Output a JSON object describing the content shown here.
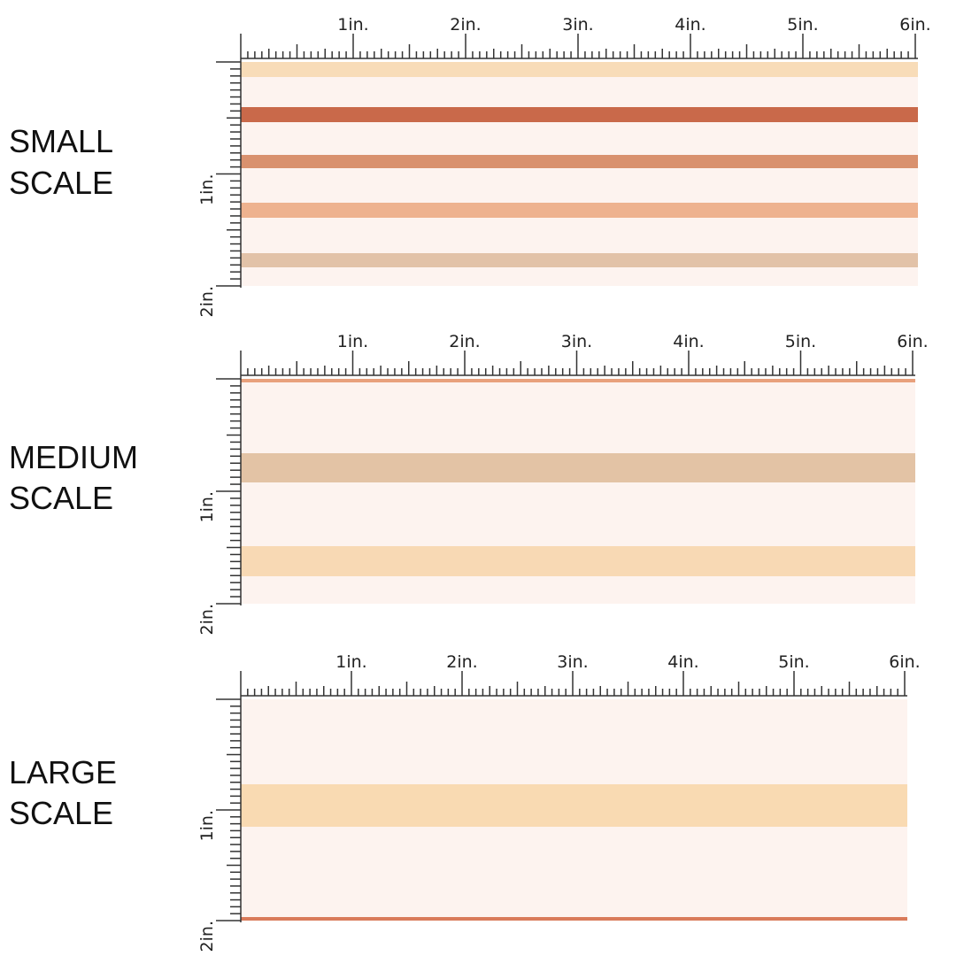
{
  "panels": [
    {
      "label": [
        "SMALL",
        "SCALE"
      ],
      "x_ruler": [
        "1in.",
        "2in.",
        "3in.",
        "4in.",
        "5in.",
        "6in."
      ],
      "y_ruler": [
        "1in.",
        "2in."
      ]
    },
    {
      "label": [
        "MEDIUM",
        "SCALE"
      ],
      "x_ruler": [
        "1in.",
        "2in.",
        "3in.",
        "4in.",
        "5in.",
        "6in."
      ],
      "y_ruler": [
        "1in.",
        "2in."
      ]
    },
    {
      "label": [
        "LARGE",
        "SCALE"
      ],
      "x_ruler": [
        "1in.",
        "2in.",
        "3in.",
        "4in.",
        "5in.",
        "6in."
      ],
      "y_ruler": [
        "1in.",
        "2in."
      ]
    }
  ]
}
